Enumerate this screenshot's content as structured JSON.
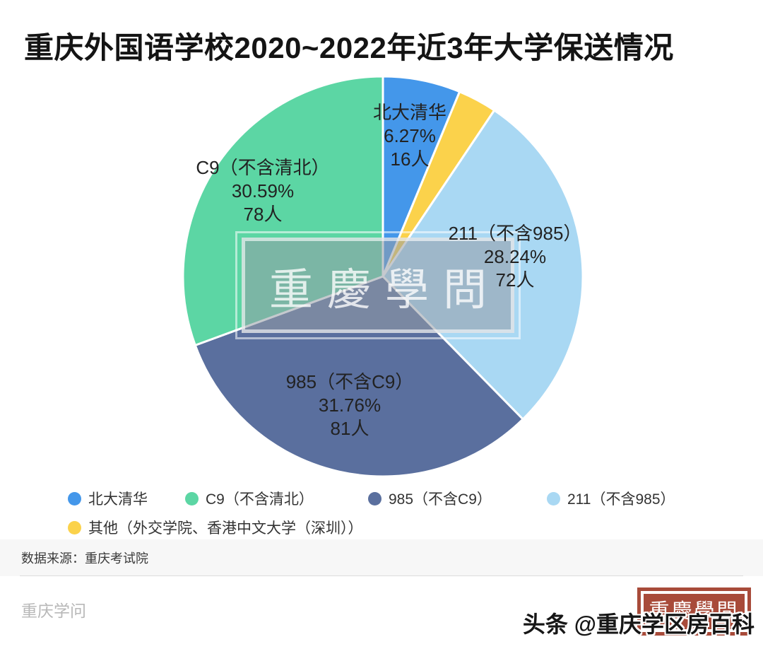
{
  "title": "重庆外国语学校2020~2022年近3年大学保送情况",
  "chart_data": {
    "type": "pie",
    "title": "重庆外国语学校2020~2022年近3年大学保送情况",
    "unit": "人",
    "legend_position": "bottom",
    "start_angle_deg": 0,
    "direction": "clockwise",
    "slices": [
      {
        "key": "beida-qinghua",
        "label": "北大清华",
        "pct": 6.27,
        "count": 16,
        "pct_text": "6.27%",
        "count_text": "16人",
        "color": "#4497EA"
      },
      {
        "key": "other",
        "label": "其他",
        "pct": 3.14,
        "color": "#FBD24B"
      },
      {
        "key": "211-not-985",
        "label": "211（不含985）",
        "pct": 28.24,
        "count": 72,
        "pct_text": "28.24%",
        "count_text": "72人",
        "color": "#A9D8F3"
      },
      {
        "key": "985-not-c9",
        "label": "985（不含C9）",
        "pct": 31.76,
        "count": 81,
        "pct_text": "31.76%",
        "count_text": "81人",
        "color": "#5A6F9E"
      },
      {
        "key": "c9-not-qingbei",
        "label": "C9（不含清北）",
        "pct": 30.59,
        "count": 78,
        "pct_text": "30.59%",
        "count_text": "78人",
        "color": "#5CD6A4"
      }
    ]
  },
  "legend": {
    "items": [
      {
        "label": "北大清华",
        "color": "#4497EA"
      },
      {
        "label": "C9（不含清北）",
        "color": "#5CD6A4"
      },
      {
        "label": "985（不含C9）",
        "color": "#5A6F9E"
      },
      {
        "label": "211（不含985）",
        "color": "#A9D8F3"
      },
      {
        "label": "其他（外交学院、香港中文大学（深圳））",
        "color": "#FBD24B"
      }
    ]
  },
  "watermark": {
    "text": "重慶學問"
  },
  "footer": {
    "source": "数据来源：重庆考试院",
    "brand": "重庆学问",
    "stamp_text": "重慶學問",
    "handle": "头条 @重庆学区房百科"
  }
}
